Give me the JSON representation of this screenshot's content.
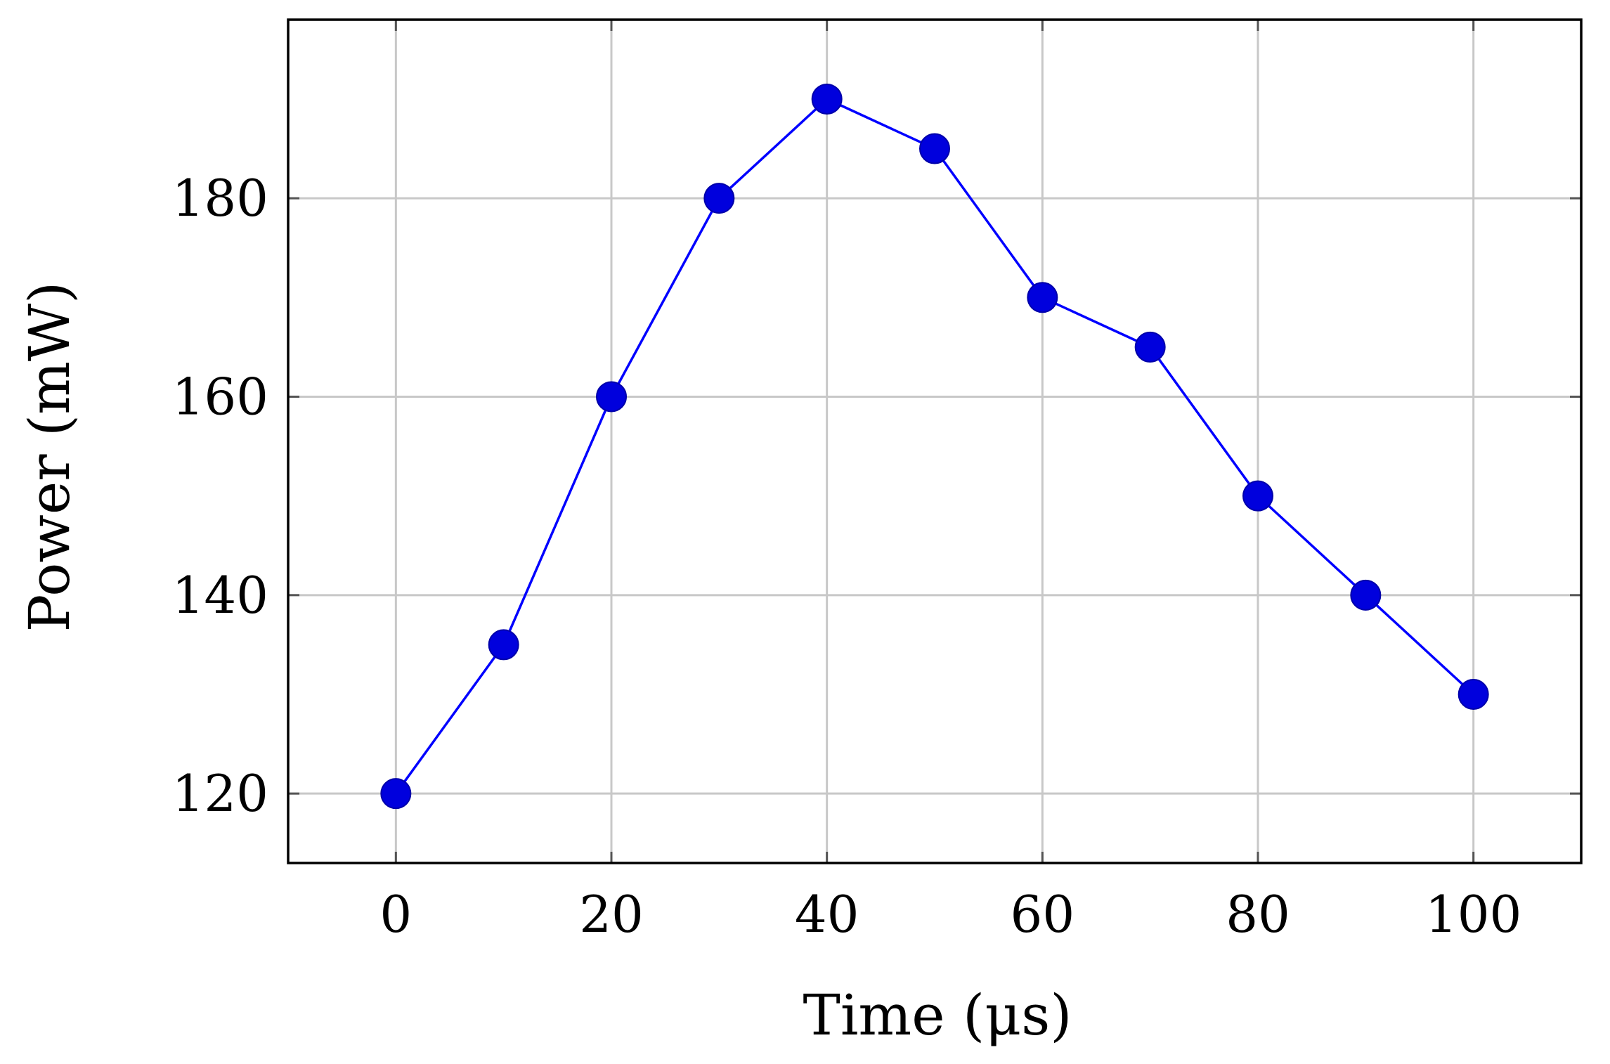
{
  "chart_data": {
    "type": "line",
    "xlabel": "Time (μs)",
    "ylabel": "Power (mW)",
    "xlim": [
      -10,
      110
    ],
    "ylim": [
      113,
      198
    ],
    "x_ticks": [
      0,
      20,
      40,
      60,
      80,
      100
    ],
    "y_ticks": [
      120,
      140,
      160,
      180
    ],
    "grid": true,
    "series": [
      {
        "color": "#0000ff",
        "marker": "circle",
        "x": [
          0,
          10,
          20,
          30,
          40,
          50,
          60,
          70,
          80,
          90,
          100
        ],
        "y": [
          120,
          135,
          160,
          180,
          190,
          185,
          170,
          165,
          150,
          140,
          130
        ]
      }
    ]
  }
}
